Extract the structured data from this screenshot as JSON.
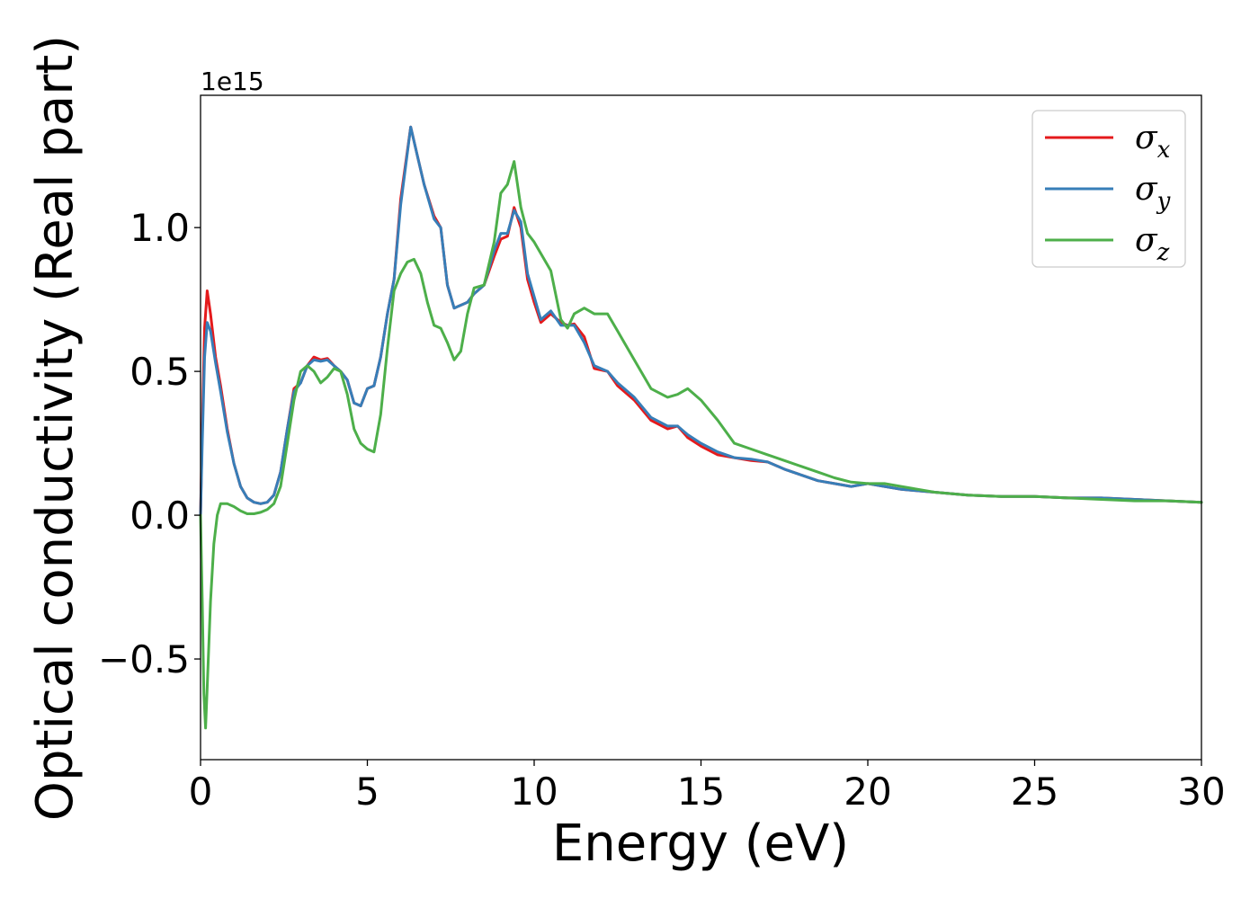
{
  "chart_data": {
    "type": "line",
    "title": "",
    "xlabel": "Energy (eV)",
    "ylabel": "Optical conductivity (Real part)",
    "y_offset_label": "1e15",
    "y_scale": 1000000000000000.0,
    "xlim": [
      0,
      30
    ],
    "ylim": [
      -0.85,
      1.46
    ],
    "x_ticks": [
      0,
      5,
      10,
      15,
      20,
      25,
      30
    ],
    "x_tick_labels": [
      "0",
      "5",
      "10",
      "15",
      "20",
      "25",
      "30"
    ],
    "y_ticks": [
      -0.5,
      0.0,
      0.5,
      1.0
    ],
    "y_tick_labels": [
      "−0.5",
      "0.0",
      "0.5",
      "1.0"
    ],
    "grid": false,
    "legend_position": "top-right",
    "series": [
      {
        "name": "σx",
        "symbol": "σ",
        "subscript": "x",
        "color": "#e41a1c",
        "points": [
          [
            0,
            0.0
          ],
          [
            0.05,
            0.3
          ],
          [
            0.12,
            0.65
          ],
          [
            0.2,
            0.78
          ],
          [
            0.3,
            0.7
          ],
          [
            0.45,
            0.55
          ],
          [
            0.6,
            0.45
          ],
          [
            0.8,
            0.3
          ],
          [
            1.0,
            0.18
          ],
          [
            1.2,
            0.1
          ],
          [
            1.4,
            0.06
          ],
          [
            1.6,
            0.045
          ],
          [
            1.8,
            0.04
          ],
          [
            2.0,
            0.045
          ],
          [
            2.2,
            0.07
          ],
          [
            2.4,
            0.15
          ],
          [
            2.6,
            0.3
          ],
          [
            2.8,
            0.44
          ],
          [
            3.0,
            0.46
          ],
          [
            3.2,
            0.52
          ],
          [
            3.4,
            0.55
          ],
          [
            3.6,
            0.54
          ],
          [
            3.8,
            0.545
          ],
          [
            4.0,
            0.52
          ],
          [
            4.2,
            0.5
          ],
          [
            4.4,
            0.47
          ],
          [
            4.6,
            0.39
          ],
          [
            4.8,
            0.38
          ],
          [
            5.0,
            0.44
          ],
          [
            5.2,
            0.45
          ],
          [
            5.4,
            0.55
          ],
          [
            5.6,
            0.7
          ],
          [
            5.8,
            0.82
          ],
          [
            6.0,
            1.1
          ],
          [
            6.3,
            1.35
          ],
          [
            6.5,
            1.25
          ],
          [
            6.7,
            1.15
          ],
          [
            7.0,
            1.04
          ],
          [
            7.2,
            1.0
          ],
          [
            7.4,
            0.8
          ],
          [
            7.6,
            0.72
          ],
          [
            7.8,
            0.73
          ],
          [
            8.0,
            0.74
          ],
          [
            8.2,
            0.77
          ],
          [
            8.5,
            0.8
          ],
          [
            8.8,
            0.9
          ],
          [
            9.0,
            0.96
          ],
          [
            9.2,
            0.97
          ],
          [
            9.4,
            1.07
          ],
          [
            9.6,
            1.0
          ],
          [
            9.8,
            0.82
          ],
          [
            10.0,
            0.74
          ],
          [
            10.2,
            0.67
          ],
          [
            10.5,
            0.7
          ],
          [
            10.8,
            0.67
          ],
          [
            11.0,
            0.66
          ],
          [
            11.2,
            0.665
          ],
          [
            11.5,
            0.62
          ],
          [
            11.8,
            0.51
          ],
          [
            12.2,
            0.5
          ],
          [
            12.5,
            0.45
          ],
          [
            13.0,
            0.4
          ],
          [
            13.5,
            0.33
          ],
          [
            14.0,
            0.3
          ],
          [
            14.3,
            0.31
          ],
          [
            14.6,
            0.27
          ],
          [
            15.0,
            0.24
          ],
          [
            15.5,
            0.21
          ],
          [
            16.0,
            0.2
          ],
          [
            16.5,
            0.19
          ],
          [
            17.0,
            0.185
          ],
          [
            17.5,
            0.16
          ],
          [
            18.0,
            0.14
          ],
          [
            18.5,
            0.12
          ],
          [
            19.0,
            0.11
          ],
          [
            19.5,
            0.1
          ],
          [
            20.0,
            0.11
          ],
          [
            20.5,
            0.1
          ],
          [
            21.0,
            0.09
          ],
          [
            22.0,
            0.08
          ],
          [
            23.0,
            0.07
          ],
          [
            24.0,
            0.065
          ],
          [
            25.0,
            0.065
          ],
          [
            26.0,
            0.06
          ],
          [
            27.0,
            0.06
          ],
          [
            28.0,
            0.055
          ],
          [
            29.0,
            0.05
          ],
          [
            30.0,
            0.045
          ]
        ]
      },
      {
        "name": "σy",
        "symbol": "σ",
        "subscript": "y",
        "color": "#377eb8",
        "points": [
          [
            0,
            0.0
          ],
          [
            0.05,
            0.25
          ],
          [
            0.12,
            0.55
          ],
          [
            0.2,
            0.67
          ],
          [
            0.3,
            0.64
          ],
          [
            0.45,
            0.53
          ],
          [
            0.6,
            0.43
          ],
          [
            0.8,
            0.29
          ],
          [
            1.0,
            0.18
          ],
          [
            1.2,
            0.1
          ],
          [
            1.4,
            0.06
          ],
          [
            1.6,
            0.045
          ],
          [
            1.8,
            0.04
          ],
          [
            2.0,
            0.045
          ],
          [
            2.2,
            0.07
          ],
          [
            2.4,
            0.15
          ],
          [
            2.6,
            0.3
          ],
          [
            2.8,
            0.43
          ],
          [
            3.0,
            0.46
          ],
          [
            3.2,
            0.52
          ],
          [
            3.4,
            0.54
          ],
          [
            3.6,
            0.535
          ],
          [
            3.8,
            0.54
          ],
          [
            4.0,
            0.52
          ],
          [
            4.2,
            0.5
          ],
          [
            4.4,
            0.47
          ],
          [
            4.6,
            0.39
          ],
          [
            4.8,
            0.38
          ],
          [
            5.0,
            0.44
          ],
          [
            5.2,
            0.45
          ],
          [
            5.4,
            0.55
          ],
          [
            5.6,
            0.7
          ],
          [
            5.8,
            0.82
          ],
          [
            6.0,
            1.08
          ],
          [
            6.3,
            1.35
          ],
          [
            6.5,
            1.25
          ],
          [
            6.7,
            1.15
          ],
          [
            7.0,
            1.03
          ],
          [
            7.2,
            1.0
          ],
          [
            7.4,
            0.8
          ],
          [
            7.6,
            0.72
          ],
          [
            7.8,
            0.73
          ],
          [
            8.0,
            0.74
          ],
          [
            8.2,
            0.77
          ],
          [
            8.5,
            0.8
          ],
          [
            8.8,
            0.92
          ],
          [
            9.0,
            0.98
          ],
          [
            9.2,
            0.98
          ],
          [
            9.4,
            1.06
          ],
          [
            9.6,
            1.02
          ],
          [
            9.8,
            0.84
          ],
          [
            10.0,
            0.76
          ],
          [
            10.2,
            0.68
          ],
          [
            10.5,
            0.71
          ],
          [
            10.8,
            0.66
          ],
          [
            11.0,
            0.66
          ],
          [
            11.2,
            0.66
          ],
          [
            11.5,
            0.6
          ],
          [
            11.8,
            0.52
          ],
          [
            12.2,
            0.5
          ],
          [
            12.5,
            0.46
          ],
          [
            13.0,
            0.41
          ],
          [
            13.5,
            0.34
          ],
          [
            14.0,
            0.31
          ],
          [
            14.3,
            0.31
          ],
          [
            14.6,
            0.28
          ],
          [
            15.0,
            0.25
          ],
          [
            15.5,
            0.22
          ],
          [
            16.0,
            0.2
          ],
          [
            16.5,
            0.195
          ],
          [
            17.0,
            0.185
          ],
          [
            17.5,
            0.16
          ],
          [
            18.0,
            0.14
          ],
          [
            18.5,
            0.12
          ],
          [
            19.0,
            0.11
          ],
          [
            19.5,
            0.1
          ],
          [
            20.0,
            0.11
          ],
          [
            20.5,
            0.1
          ],
          [
            21.0,
            0.09
          ],
          [
            22.0,
            0.08
          ],
          [
            23.0,
            0.07
          ],
          [
            24.0,
            0.065
          ],
          [
            25.0,
            0.065
          ],
          [
            26.0,
            0.06
          ],
          [
            27.0,
            0.06
          ],
          [
            28.0,
            0.055
          ],
          [
            29.0,
            0.05
          ],
          [
            30.0,
            0.045
          ]
        ]
      },
      {
        "name": "σz",
        "symbol": "σ",
        "subscript": "z",
        "color": "#4daf4a",
        "points": [
          [
            0,
            0.0
          ],
          [
            0.05,
            -0.3
          ],
          [
            0.1,
            -0.62
          ],
          [
            0.15,
            -0.74
          ],
          [
            0.2,
            -0.6
          ],
          [
            0.3,
            -0.3
          ],
          [
            0.4,
            -0.1
          ],
          [
            0.5,
            0.0
          ],
          [
            0.6,
            0.04
          ],
          [
            0.8,
            0.04
          ],
          [
            1.0,
            0.03
          ],
          [
            1.2,
            0.015
          ],
          [
            1.4,
            0.005
          ],
          [
            1.6,
            0.005
          ],
          [
            1.8,
            0.01
          ],
          [
            2.0,
            0.02
          ],
          [
            2.2,
            0.04
          ],
          [
            2.4,
            0.1
          ],
          [
            2.6,
            0.25
          ],
          [
            2.8,
            0.4
          ],
          [
            3.0,
            0.5
          ],
          [
            3.2,
            0.52
          ],
          [
            3.4,
            0.5
          ],
          [
            3.6,
            0.46
          ],
          [
            3.8,
            0.48
          ],
          [
            4.0,
            0.51
          ],
          [
            4.2,
            0.5
          ],
          [
            4.4,
            0.42
          ],
          [
            4.6,
            0.3
          ],
          [
            4.8,
            0.25
          ],
          [
            5.0,
            0.23
          ],
          [
            5.2,
            0.22
          ],
          [
            5.4,
            0.35
          ],
          [
            5.6,
            0.58
          ],
          [
            5.8,
            0.78
          ],
          [
            6.0,
            0.84
          ],
          [
            6.2,
            0.88
          ],
          [
            6.4,
            0.89
          ],
          [
            6.6,
            0.84
          ],
          [
            6.8,
            0.74
          ],
          [
            7.0,
            0.66
          ],
          [
            7.2,
            0.65
          ],
          [
            7.4,
            0.6
          ],
          [
            7.6,
            0.54
          ],
          [
            7.8,
            0.57
          ],
          [
            8.0,
            0.7
          ],
          [
            8.2,
            0.79
          ],
          [
            8.5,
            0.8
          ],
          [
            8.8,
            0.95
          ],
          [
            9.0,
            1.12
          ],
          [
            9.2,
            1.15
          ],
          [
            9.4,
            1.23
          ],
          [
            9.6,
            1.07
          ],
          [
            9.8,
            0.98
          ],
          [
            10.0,
            0.95
          ],
          [
            10.2,
            0.91
          ],
          [
            10.5,
            0.85
          ],
          [
            10.8,
            0.68
          ],
          [
            11.0,
            0.65
          ],
          [
            11.2,
            0.7
          ],
          [
            11.5,
            0.72
          ],
          [
            11.8,
            0.7
          ],
          [
            12.2,
            0.7
          ],
          [
            12.5,
            0.64
          ],
          [
            13.0,
            0.54
          ],
          [
            13.5,
            0.44
          ],
          [
            14.0,
            0.41
          ],
          [
            14.3,
            0.42
          ],
          [
            14.6,
            0.44
          ],
          [
            15.0,
            0.4
          ],
          [
            15.5,
            0.33
          ],
          [
            16.0,
            0.25
          ],
          [
            16.5,
            0.23
          ],
          [
            17.0,
            0.21
          ],
          [
            17.5,
            0.19
          ],
          [
            18.0,
            0.17
          ],
          [
            18.5,
            0.15
          ],
          [
            19.0,
            0.13
          ],
          [
            19.5,
            0.115
          ],
          [
            20.0,
            0.11
          ],
          [
            20.5,
            0.11
          ],
          [
            21.0,
            0.1
          ],
          [
            22.0,
            0.08
          ],
          [
            23.0,
            0.07
          ],
          [
            24.0,
            0.065
          ],
          [
            25.0,
            0.065
          ],
          [
            26.0,
            0.06
          ],
          [
            27.0,
            0.055
          ],
          [
            28.0,
            0.05
          ],
          [
            29.0,
            0.05
          ],
          [
            30.0,
            0.045
          ]
        ]
      }
    ]
  }
}
